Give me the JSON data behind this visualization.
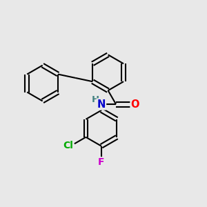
{
  "background_color": "#e8e8e8",
  "bond_color": "#000000",
  "bond_width": 1.5,
  "atom_colors": {
    "H": "#408080",
    "N": "#0000cc",
    "O": "#ff0000",
    "Cl": "#00aa00",
    "F": "#cc00cc",
    "C": "#000000"
  },
  "font_size": 9.5,
  "figsize": [
    3.0,
    3.0
  ],
  "dpi": 100
}
